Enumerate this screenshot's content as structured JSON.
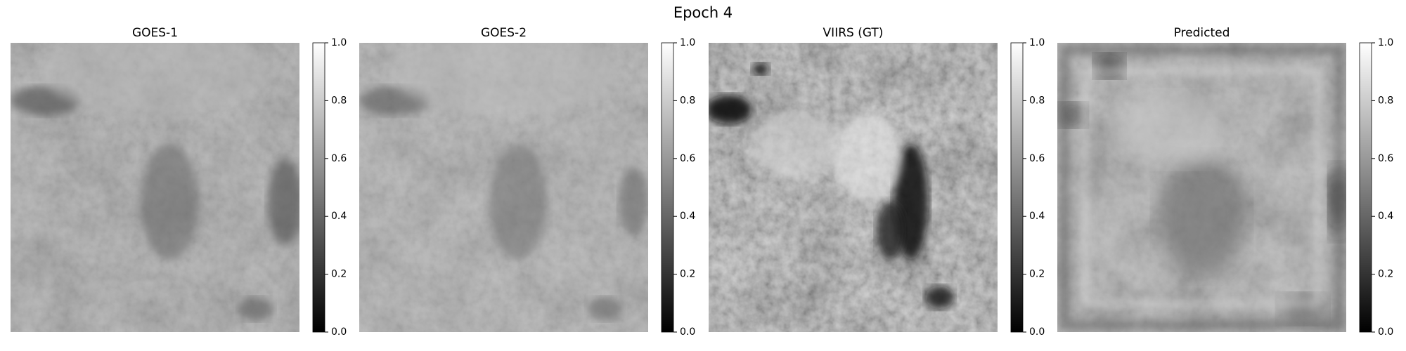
{
  "figure": {
    "title": "Epoch 4",
    "panels": [
      {
        "title": "GOES-1",
        "clim": [
          0,
          1
        ],
        "ticks": [
          {
            "value": 0,
            "label": "0.0"
          },
          {
            "value": 0.2,
            "label": "0.2"
          },
          {
            "value": 0.4,
            "label": "0.4"
          },
          {
            "value": 0.6,
            "label": "0.6"
          },
          {
            "value": 0.8,
            "label": "0.8"
          },
          {
            "value": 1,
            "label": "1.0"
          }
        ]
      },
      {
        "title": "GOES-2",
        "clim": [
          0,
          1
        ],
        "ticks": [
          {
            "value": 0,
            "label": "0.0"
          },
          {
            "value": 0.2,
            "label": "0.2"
          },
          {
            "value": 0.4,
            "label": "0.4"
          },
          {
            "value": 0.6,
            "label": "0.6"
          },
          {
            "value": 0.8,
            "label": "0.8"
          },
          {
            "value": 1,
            "label": "1.0"
          }
        ]
      },
      {
        "title": "VIIRS (GT)",
        "clim": [
          0,
          1
        ],
        "ticks": [
          {
            "value": 0,
            "label": "0.0"
          },
          {
            "value": 0.2,
            "label": "0.2"
          },
          {
            "value": 0.4,
            "label": "0.4"
          },
          {
            "value": 0.6,
            "label": "0.6"
          },
          {
            "value": 0.8,
            "label": "0.8"
          },
          {
            "value": 1,
            "label": "1.0"
          }
        ]
      },
      {
        "title": "Predicted",
        "clim": [
          0,
          1
        ],
        "ticks": [
          {
            "value": 0,
            "label": "0.0"
          },
          {
            "value": 0.2,
            "label": "0.2"
          },
          {
            "value": 0.4,
            "label": "0.4"
          },
          {
            "value": 0.6,
            "label": "0.6"
          },
          {
            "value": 0.8,
            "label": "0.8"
          },
          {
            "value": 1,
            "label": "1.0"
          }
        ]
      }
    ]
  }
}
